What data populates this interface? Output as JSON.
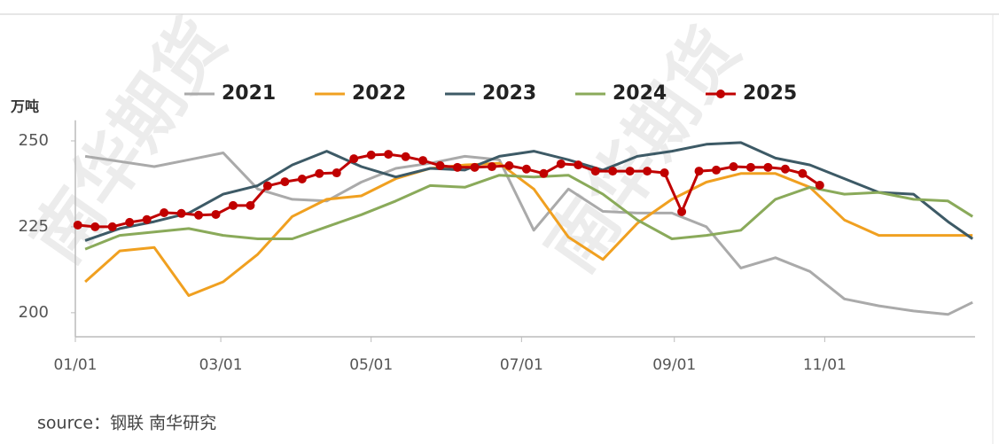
{
  "chart_data": {
    "type": "line",
    "watermark": "南华期货",
    "y_label": "万吨",
    "source": "source：钢联 南华研究",
    "xlim": [
      0,
      365
    ],
    "xticks": [
      {
        "value": 0,
        "label": "01/01"
      },
      {
        "value": 59,
        "label": "03/01"
      },
      {
        "value": 120,
        "label": "05/01"
      },
      {
        "value": 181,
        "label": "07/01"
      },
      {
        "value": 243,
        "label": "09/01"
      },
      {
        "value": 304,
        "label": "11/01"
      }
    ],
    "ylim": [
      193,
      256
    ],
    "yticks": [
      200,
      225,
      250
    ],
    "legend": "top",
    "series": [
      {
        "name": "2021",
        "color": "#aaaaaa",
        "markers": false,
        "x": [
          4,
          18,
          32,
          46,
          60,
          74,
          88,
          102,
          116,
          130,
          144,
          158,
          172,
          186,
          200,
          214,
          228,
          242,
          256,
          270,
          284,
          298,
          312,
          326,
          340,
          354,
          364
        ],
        "values": [
          245.5,
          244,
          242.5,
          244.5,
          246.5,
          236,
          233,
          232.5,
          238,
          242,
          243.5,
          245.5,
          244.5,
          224,
          236,
          229.5,
          229,
          229,
          225,
          213,
          216,
          212,
          204,
          202,
          200.5,
          199.5,
          203
        ]
      },
      {
        "name": "2022",
        "color": "#f0a020",
        "markers": false,
        "x": [
          4,
          18,
          32,
          46,
          60,
          74,
          88,
          102,
          116,
          130,
          144,
          158,
          172,
          186,
          200,
          214,
          228,
          242,
          256,
          270,
          284,
          298,
          312,
          326,
          340,
          354,
          364
        ],
        "values": [
          209,
          218,
          219,
          205,
          209,
          217,
          228,
          233,
          234,
          239,
          242,
          243,
          243.5,
          236,
          222,
          215.5,
          226,
          233,
          238,
          240.5,
          240.5,
          236.5,
          227,
          222.5,
          222.5,
          222.5,
          222.5
        ]
      },
      {
        "name": "2023",
        "color": "#3d5a66",
        "markers": false,
        "x": [
          4,
          18,
          32,
          46,
          60,
          74,
          88,
          102,
          116,
          130,
          144,
          158,
          172,
          186,
          200,
          214,
          228,
          242,
          256,
          270,
          284,
          298,
          312,
          326,
          340,
          354,
          364
        ],
        "values": [
          221,
          224.5,
          226.5,
          229,
          234.5,
          237,
          243,
          247,
          242.5,
          239.5,
          242,
          241.5,
          245.5,
          247,
          244.5,
          241.5,
          245.5,
          247,
          249,
          249.5,
          245,
          243,
          239,
          235,
          234.5,
          226.5,
          221.5
        ]
      },
      {
        "name": "2024",
        "color": "#8aaa5a",
        "markers": false,
        "x": [
          4,
          18,
          32,
          46,
          60,
          74,
          88,
          102,
          116,
          130,
          144,
          158,
          172,
          186,
          200,
          214,
          228,
          242,
          256,
          270,
          284,
          298,
          312,
          326,
          340,
          354,
          364
        ],
        "values": [
          218.5,
          222.5,
          223.5,
          224.5,
          222.5,
          221.5,
          221.5,
          225,
          228.5,
          232.5,
          237,
          236.5,
          240,
          239.5,
          240,
          234.5,
          227,
          221.5,
          222.5,
          224,
          233,
          236.5,
          234.5,
          235,
          233,
          232.5,
          228
        ]
      },
      {
        "name": "2025",
        "color": "#c00000",
        "markers": true,
        "x": [
          1,
          8,
          15,
          22,
          29,
          36,
          43,
          50,
          57,
          64,
          71,
          78,
          85,
          92,
          99,
          106,
          113,
          120,
          127,
          134,
          141,
          148,
          155,
          162,
          169,
          176,
          183,
          190,
          197,
          204,
          211,
          218,
          225,
          232,
          239,
          246,
          253,
          260,
          267,
          274,
          281,
          288,
          295,
          302
        ],
        "values": [
          225.5,
          225,
          225,
          226.3,
          227.1,
          229.1,
          228.9,
          228.4,
          228.6,
          231.2,
          231.2,
          236.9,
          238.1,
          238.9,
          240.5,
          240.7,
          244.8,
          245.9,
          246.1,
          245.4,
          244.3,
          242.8,
          242.3,
          242.3,
          242.5,
          242.8,
          241.8,
          240.5,
          243.3,
          243,
          241.2,
          241.2,
          241.2,
          241.2,
          240.7,
          229.4,
          241.2,
          241.5,
          242.5,
          242.3,
          242.3,
          241.8,
          240.5,
          237.1
        ]
      }
    ]
  }
}
